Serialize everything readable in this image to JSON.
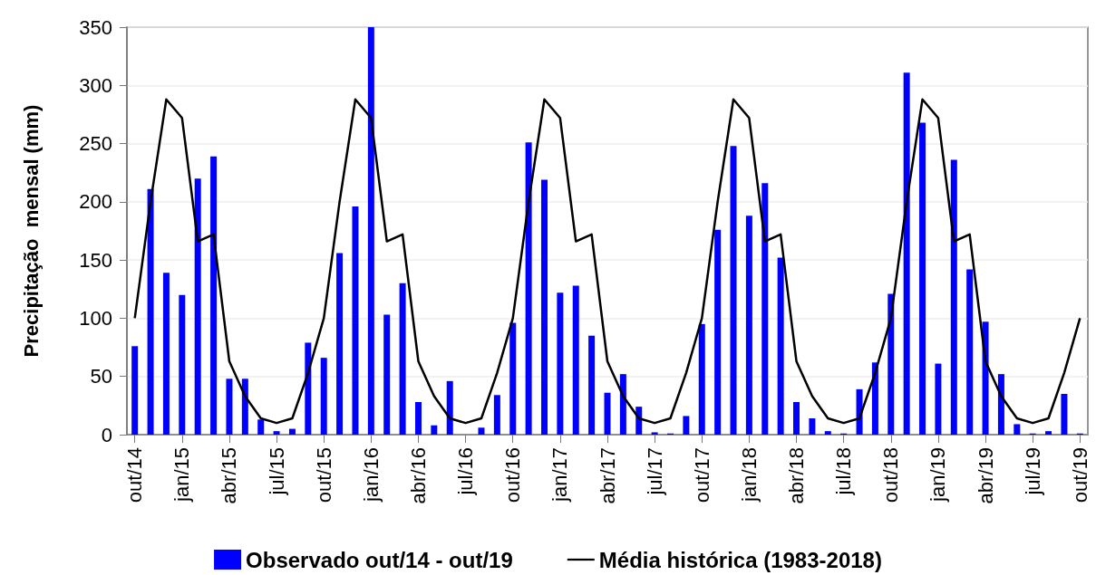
{
  "chart_data": {
    "type": "bar",
    "ylabel": "Precipitação  mensal (mm)",
    "categories": [
      "out/14",
      null,
      null,
      "jan/15",
      null,
      null,
      "abr/15",
      null,
      null,
      "jul/15",
      null,
      null,
      "out/15",
      null,
      null,
      "jan/16",
      null,
      null,
      "abr/16",
      null,
      null,
      "jul/16",
      null,
      null,
      "out/16",
      null,
      null,
      "jan/17",
      null,
      null,
      "abr/17",
      null,
      null,
      "jul/17",
      null,
      null,
      "out/17",
      null,
      null,
      "jan/18",
      null,
      null,
      "abr/18",
      null,
      null,
      "jul/18",
      null,
      null,
      "out/18",
      null,
      null,
      "jan/19",
      null,
      null,
      "abr/19",
      null,
      null,
      "jul/19",
      null,
      null,
      "out/19"
    ],
    "series": [
      {
        "name": "Observado out/14 - out/19",
        "color": "#0000ff",
        "values": [
          76,
          211,
          139,
          120,
          220,
          239,
          48,
          48,
          13,
          3,
          5,
          79,
          66,
          156,
          196,
          350,
          103,
          130,
          28,
          8,
          46,
          0,
          6,
          34,
          96,
          251,
          219,
          122,
          128,
          85,
          36,
          52,
          24,
          2,
          1,
          16,
          95,
          176,
          248,
          188,
          216,
          152,
          28,
          14,
          3,
          1,
          39,
          62,
          121,
          311,
          268,
          61,
          236,
          142,
          97,
          52,
          9,
          1,
          3,
          35,
          1
        ]
      },
      {
        "name": "Média histórica (1983-2018)",
        "type": "line",
        "color": "#000000",
        "values": [
          100,
          200,
          288,
          272,
          166,
          172,
          63,
          33,
          14,
          10,
          14,
          53,
          100,
          200,
          288,
          272,
          166,
          172,
          63,
          33,
          14,
          10,
          14,
          53,
          100,
          200,
          288,
          272,
          166,
          172,
          63,
          33,
          14,
          10,
          14,
          53,
          100,
          200,
          288,
          272,
          166,
          172,
          63,
          33,
          14,
          10,
          14,
          53,
          100,
          200,
          288,
          272,
          166,
          172,
          63,
          33,
          14,
          10,
          14,
          53,
          100
        ]
      }
    ],
    "ylim": [
      0,
      350
    ],
    "yticks": [
      0,
      50,
      100,
      150,
      200,
      250,
      300,
      350
    ],
    "grid": "y",
    "legend": "bottom",
    "marker": "none"
  }
}
